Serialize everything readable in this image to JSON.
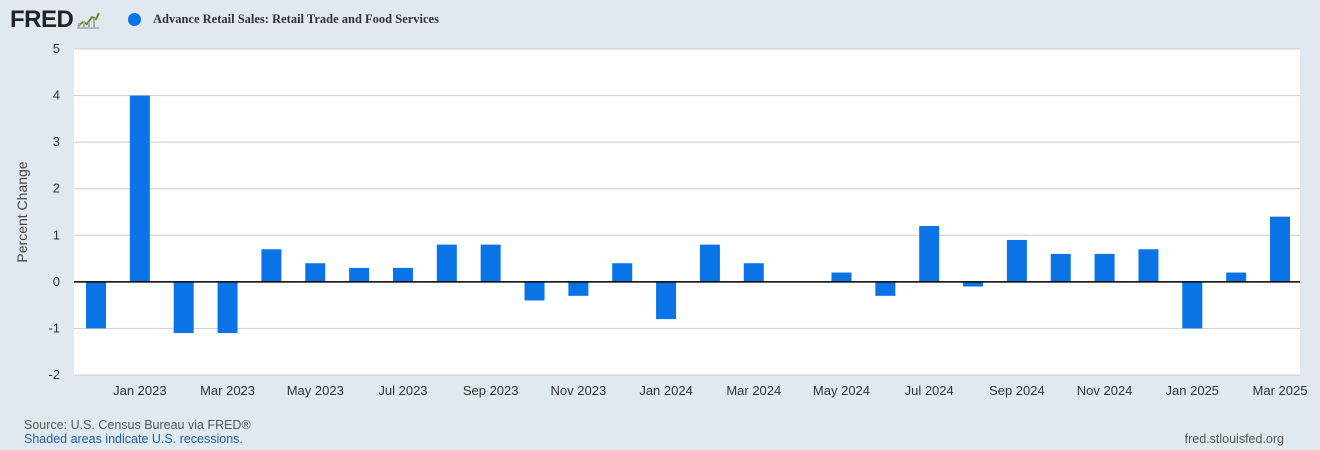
{
  "brand": {
    "logo_text": "FRED",
    "logo_mark": "fred-chart-icon"
  },
  "legend": {
    "label": "Advance Retail Sales: Retail Trade and Food Services",
    "color": "#0a74e6"
  },
  "footer": {
    "source": "U.S. Census Bureau via FRED®",
    "source_prefix": "Source: ",
    "recession_note": "Shaded areas indicate U.S. recessions.",
    "url": "fred.stlouisfed.org"
  },
  "colors": {
    "background": "#e1e9f0",
    "plot_background": "#ffffff",
    "bar": "#0a74e6",
    "gridline": "#c8cdd3",
    "zero_line": "#000000"
  },
  "chart_data": {
    "type": "bar",
    "title": "Advance Retail Sales: Retail Trade and Food Services",
    "ylabel": "Percent Change",
    "xlabel": "",
    "ylim": [
      -2,
      5
    ],
    "yticks": [
      5,
      4,
      3,
      2,
      1,
      0,
      -1,
      -2
    ],
    "grid": true,
    "legend_position": "top-left",
    "categories": [
      "2022-12",
      "2023-01",
      "2023-02",
      "2023-03",
      "2023-04",
      "2023-05",
      "2023-06",
      "2023-07",
      "2023-08",
      "2023-09",
      "2023-10",
      "2023-11",
      "2023-12",
      "2024-01",
      "2024-02",
      "2024-03",
      "2024-04",
      "2024-05",
      "2024-06",
      "2024-07",
      "2024-08",
      "2024-09",
      "2024-10",
      "2024-11",
      "2024-12",
      "2025-01",
      "2025-02",
      "2025-03"
    ],
    "xtick_labels": [
      "Jan 2023",
      "Mar 2023",
      "May 2023",
      "Jul 2023",
      "Sep 2023",
      "Nov 2023",
      "Jan 2024",
      "Mar 2024",
      "May 2024",
      "Jul 2024",
      "Sep 2024",
      "Nov 2024",
      "Jan 2025",
      "Mar 2025"
    ],
    "series": [
      {
        "name": "Advance Retail Sales: Retail Trade and Food Services",
        "values": [
          -1.0,
          4.0,
          -1.1,
          -1.1,
          0.7,
          0.4,
          0.3,
          0.3,
          0.8,
          0.8,
          -0.4,
          -0.3,
          0.4,
          -0.8,
          0.8,
          0.4,
          0.0,
          0.2,
          -0.3,
          1.2,
          -0.1,
          0.9,
          0.6,
          0.6,
          0.7,
          -1.0,
          0.2,
          1.4
        ]
      }
    ]
  }
}
